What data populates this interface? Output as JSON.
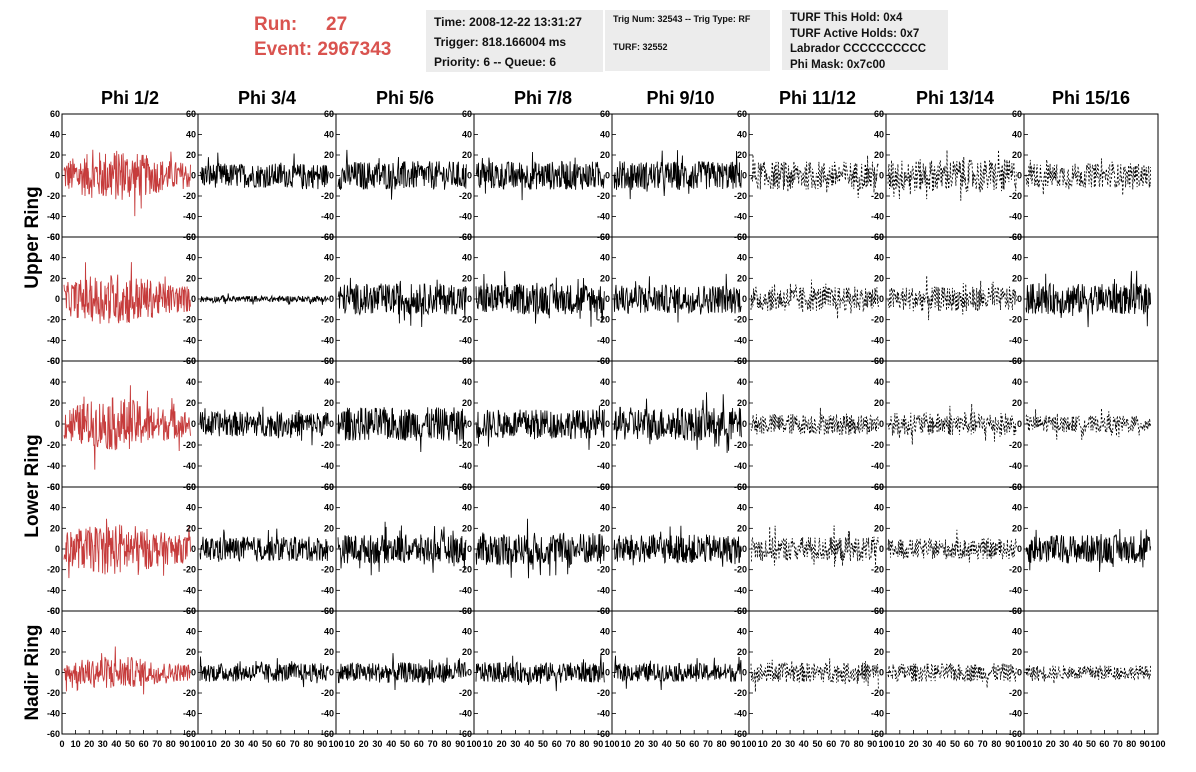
{
  "header": {
    "run_label": "Run:",
    "run_value": "27",
    "event_label": "Event:",
    "event_value": "2967343",
    "time_box": [
      "Time: 2008-12-22 13:31:27",
      "Trigger: 818.166004 ms",
      "Priority: 6 -- Queue: 6"
    ],
    "trig_box": [
      "Trig Num: 32543 -- Trig Type: RF",
      "",
      "TURF: 32552"
    ],
    "turf_box": [
      "TURF This Hold: 0x4",
      "TURF Active Holds: 0x7",
      "Labrador CCCCCCCCCC",
      "Phi Mask: 0x7c00"
    ]
  },
  "colors": {
    "highlight": "#c63c3c",
    "trace": "#000000",
    "run_text": "#d9534f",
    "box_bg": "#ececec"
  },
  "chart_data": {
    "type": "line",
    "columns": [
      "Phi 1/2",
      "Phi 3/4",
      "Phi 5/6",
      "Phi 7/8",
      "Phi 9/10",
      "Phi 11/12",
      "Phi 13/14",
      "Phi 15/16"
    ],
    "row_labels": [
      "Upper Ring",
      "Lower Ring",
      "Nadir Ring"
    ],
    "ylim": [
      -60,
      60
    ],
    "yticks": [
      -60,
      -40,
      -20,
      0,
      20,
      40,
      60
    ],
    "xlim": [
      0,
      100
    ],
    "xticks": [
      0,
      10,
      20,
      30,
      40,
      50,
      60,
      70,
      80,
      90,
      100
    ],
    "grid": false,
    "rows": [
      {
        "name": "Upper Ring (1)",
        "amplitude": [
          22,
          12,
          14,
          14,
          14,
          14,
          16,
          12
        ],
        "styles": [
          "red",
          "solid",
          "solid",
          "solid",
          "solid",
          "dashed",
          "dashed",
          "dashed"
        ]
      },
      {
        "name": "Upper Ring (2)",
        "amplitude": [
          22,
          3,
          15,
          15,
          14,
          12,
          12,
          15
        ],
        "styles": [
          "red",
          "solid",
          "solid",
          "solid",
          "solid",
          "dashed",
          "dashed",
          "solid"
        ]
      },
      {
        "name": "Lower Ring (1)",
        "amplitude": [
          22,
          12,
          16,
          14,
          16,
          10,
          11,
          8
        ],
        "styles": [
          "red",
          "solid",
          "solid",
          "solid",
          "solid",
          "dashed",
          "dashed",
          "dashed"
        ]
      },
      {
        "name": "Lower Ring (2)",
        "amplitude": [
          22,
          12,
          14,
          16,
          14,
          12,
          10,
          14
        ],
        "styles": [
          "red",
          "solid",
          "solid",
          "solid",
          "solid",
          "dashed",
          "dashed",
          "solid"
        ]
      },
      {
        "name": "Nadir Ring",
        "amplitude": [
          14,
          9,
          10,
          10,
          9,
          10,
          9,
          7
        ],
        "styles": [
          "red",
          "solid",
          "solid",
          "solid",
          "solid",
          "dashed",
          "dashed",
          "dashed"
        ]
      }
    ]
  }
}
